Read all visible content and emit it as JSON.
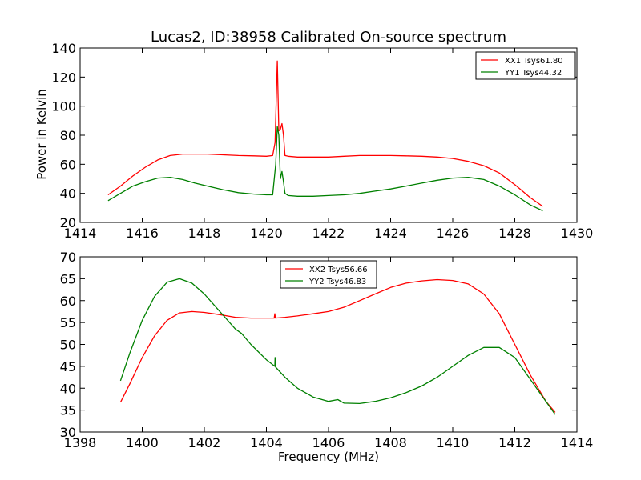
{
  "chart_data": [
    {
      "type": "line",
      "title": "Lucas2, ID:38958 Calibrated On-source spectrum",
      "xlabel": "",
      "ylabel": "Power in Kelvin",
      "xlim": [
        1414,
        1430
      ],
      "ylim": [
        20,
        140
      ],
      "xticks": [
        1414,
        1416,
        1418,
        1420,
        1422,
        1424,
        1426,
        1428,
        1430
      ],
      "yticks": [
        20,
        40,
        60,
        80,
        100,
        120,
        140
      ],
      "legend_position": "top-right",
      "grid": false,
      "series": [
        {
          "name": "XX1 Tsys61.80",
          "color": "#ff0000",
          "x": [
            1414.9,
            1415.3,
            1415.7,
            1416.1,
            1416.5,
            1416.9,
            1417.3,
            1417.7,
            1418.1,
            1418.6,
            1419.1,
            1419.6,
            1420.0,
            1420.2,
            1420.28,
            1420.35,
            1420.4,
            1420.45,
            1420.5,
            1420.55,
            1420.6,
            1420.7,
            1421.0,
            1421.5,
            1422.0,
            1422.5,
            1423.0,
            1423.5,
            1424.0,
            1424.5,
            1425.0,
            1425.5,
            1426.0,
            1426.5,
            1427.0,
            1427.5,
            1428.0,
            1428.5,
            1428.9
          ],
          "values": [
            39,
            45,
            52,
            58,
            63,
            66,
            67,
            67,
            67,
            66.5,
            66,
            65.8,
            65.5,
            66,
            75,
            131,
            83,
            84,
            88,
            80,
            66,
            65.5,
            65,
            65,
            65,
            65.5,
            66,
            66,
            66,
            65.8,
            65.5,
            65,
            64,
            62,
            59,
            54,
            46,
            37,
            31
          ]
        },
        {
          "name": "YY1 Tsys44.32",
          "color": "#008000",
          "x": [
            1414.9,
            1415.3,
            1415.7,
            1416.1,
            1416.5,
            1416.9,
            1417.3,
            1417.7,
            1418.1,
            1418.6,
            1419.1,
            1419.6,
            1420.0,
            1420.2,
            1420.3,
            1420.35,
            1420.4,
            1420.45,
            1420.5,
            1420.55,
            1420.6,
            1420.7,
            1421.0,
            1421.5,
            1422.0,
            1422.5,
            1423.0,
            1423.5,
            1424.0,
            1424.5,
            1425.0,
            1425.5,
            1426.0,
            1426.5,
            1427.0,
            1427.5,
            1428.0,
            1428.5,
            1428.9
          ],
          "values": [
            35,
            40,
            45,
            48,
            50.5,
            51,
            49.5,
            47,
            45,
            42.5,
            40.5,
            39.5,
            39,
            39,
            60,
            86,
            80,
            50,
            55,
            48,
            40,
            38.5,
            38,
            38,
            38.5,
            39,
            40,
            41.5,
            43,
            45,
            47,
            49,
            50.5,
            51,
            49.5,
            45,
            39,
            32,
            28
          ]
        }
      ]
    },
    {
      "type": "line",
      "title": "",
      "xlabel": "Frequency (MHz)",
      "ylabel": "",
      "xlim": [
        1398,
        1414
      ],
      "ylim": [
        30,
        70
      ],
      "xticks": [
        1398,
        1400,
        1402,
        1404,
        1406,
        1408,
        1410,
        1412,
        1414
      ],
      "yticks": [
        30,
        35,
        40,
        45,
        50,
        55,
        60,
        65,
        70
      ],
      "legend_position": "top-center",
      "grid": false,
      "series": [
        {
          "name": "XX2 Tsys56.66",
          "color": "#ff0000",
          "x": [
            1399.3,
            1399.6,
            1400.0,
            1400.4,
            1400.8,
            1401.2,
            1401.6,
            1402.0,
            1402.5,
            1403.0,
            1403.5,
            1404.0,
            1404.25,
            1404.27,
            1404.29,
            1404.6,
            1405.0,
            1405.5,
            1406.0,
            1406.5,
            1407.0,
            1407.5,
            1408.0,
            1408.5,
            1409.0,
            1409.5,
            1410.0,
            1410.5,
            1411.0,
            1411.5,
            1412.0,
            1412.5,
            1413.0,
            1413.3
          ],
          "values": [
            36.8,
            41,
            47,
            52,
            55.5,
            57.2,
            57.5,
            57.3,
            56.8,
            56.2,
            56,
            56,
            56,
            57,
            56,
            56.2,
            56.5,
            57,
            57.5,
            58.5,
            60,
            61.5,
            63,
            64,
            64.5,
            64.8,
            64.6,
            63.8,
            61.5,
            57,
            50,
            43,
            37,
            34.5
          ]
        },
        {
          "name": "YY2 Tsys46.83",
          "color": "#008000",
          "x": [
            1399.3,
            1399.6,
            1400.0,
            1400.4,
            1400.8,
            1401.2,
            1401.6,
            1402.0,
            1402.5,
            1403.0,
            1403.2,
            1403.5,
            1404.0,
            1404.27,
            1404.28,
            1404.29,
            1404.3,
            1404.6,
            1405.0,
            1405.5,
            1406.0,
            1406.3,
            1406.5,
            1407.0,
            1407.5,
            1408.0,
            1408.5,
            1409.0,
            1409.5,
            1410.0,
            1410.5,
            1411.0,
            1411.5,
            1412.0,
            1412.5,
            1413.0,
            1413.3
          ],
          "values": [
            41.7,
            48,
            55.5,
            61,
            64.2,
            65,
            64,
            61.5,
            57.5,
            53.5,
            52.5,
            50,
            46.5,
            45,
            47,
            45,
            44.8,
            42.5,
            40,
            38,
            37,
            37.4,
            36.6,
            36.5,
            37,
            37.8,
            39,
            40.5,
            42.5,
            45,
            47.5,
            49.3,
            49.3,
            47,
            42,
            37,
            34
          ]
        }
      ]
    }
  ]
}
